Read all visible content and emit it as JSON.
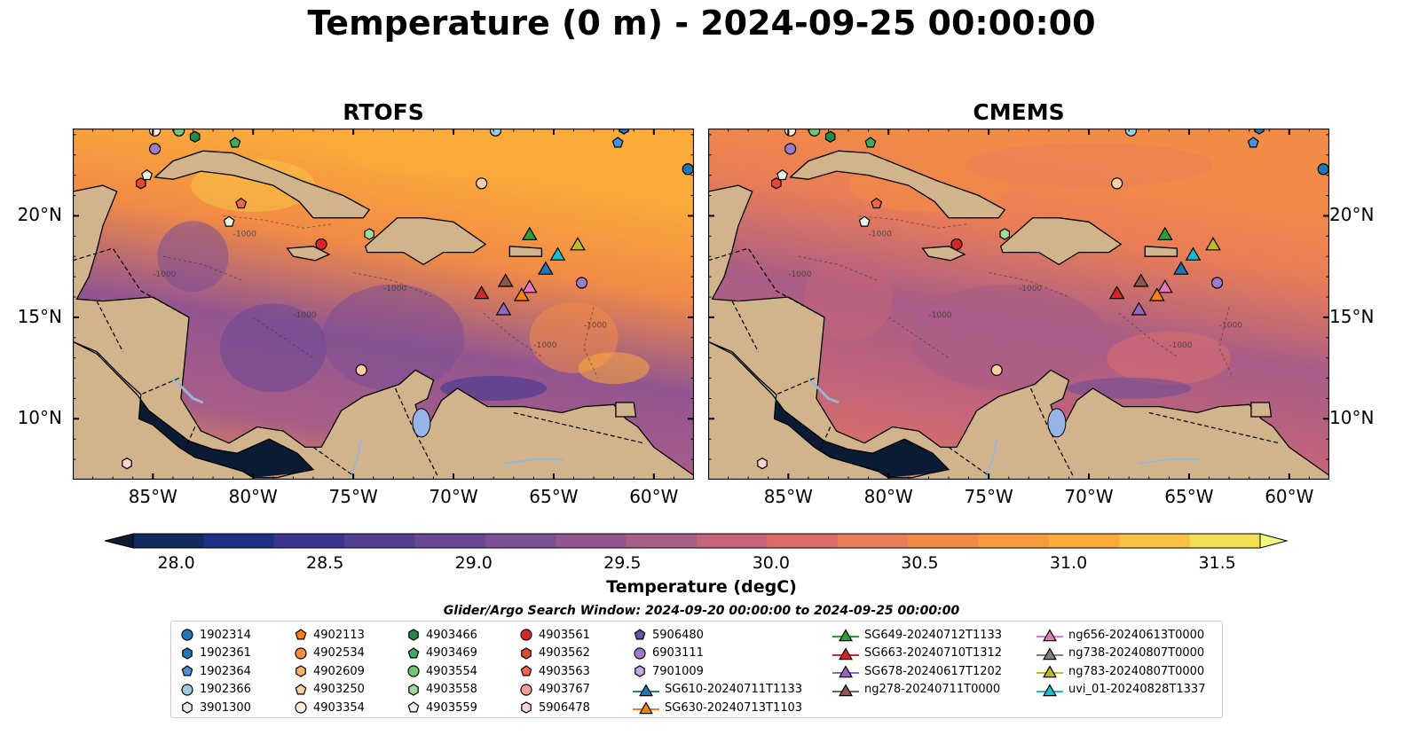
{
  "title": "Temperature (0 m) - 2024-09-25 00:00:00",
  "panels": [
    {
      "title": "RTOFS"
    },
    {
      "title": "CMEMS"
    }
  ],
  "map": {
    "lon_range": [
      -89,
      -58
    ],
    "lat_range": [
      7,
      24.3
    ],
    "lon_ticks": [
      -85,
      -80,
      -75,
      -70,
      -65,
      -60
    ],
    "lon_tick_labels": [
      "85°W",
      "80°W",
      "75°W",
      "70°W",
      "65°W",
      "60°W"
    ],
    "lat_ticks": [
      10,
      15,
      20
    ],
    "lat_tick_labels": [
      "10°N",
      "15°N",
      "20°N"
    ],
    "land_color": "#d2b48c",
    "lake_color": "#96b4e6",
    "isobath_label": "-1000"
  },
  "colorbar": {
    "min": 28.0,
    "max": 31.5,
    "ticks": [
      28.0,
      28.5,
      29.0,
      29.5,
      30.0,
      30.5,
      31.0,
      31.5
    ],
    "tick_labels": [
      "28.0",
      "28.5",
      "29.0",
      "29.5",
      "30.0",
      "30.5",
      "31.0",
      "31.5"
    ],
    "colors": [
      "#0a1b33",
      "#112a5e",
      "#1f2e86",
      "#3b3591",
      "#553f93",
      "#6a4895",
      "#7d4f94",
      "#935690",
      "#a85d87",
      "#c3647a",
      "#da6d69",
      "#ea7d57",
      "#f28b46",
      "#f89a3e",
      "#fbab3a",
      "#f8c245",
      "#f3df52",
      "#eeff80"
    ],
    "label": "Temperature (degC)"
  },
  "search_window": "Glider/Argo Search Window: 2024-09-20 00:00:00 to 2024-09-25 00:00:00",
  "legend": [
    [
      {
        "label": "1902314",
        "marker": "circle",
        "color": "#1f77b4"
      },
      {
        "label": "1902361",
        "marker": "hexagon",
        "color": "#1f77b4"
      },
      {
        "label": "1902364",
        "marker": "pentagon",
        "color": "#4a90d9"
      },
      {
        "label": "1902366",
        "marker": "circle",
        "color": "#9ecae1"
      },
      {
        "label": "3901300",
        "marker": "hexagon",
        "color": "#deebf7"
      }
    ],
    [
      {
        "label": "4902113",
        "marker": "pentagon",
        "color": "#ff7f0e"
      },
      {
        "label": "4902534",
        "marker": "circle",
        "color": "#fd8d3c"
      },
      {
        "label": "4902609",
        "marker": "hexagon",
        "color": "#fdae6b"
      },
      {
        "label": "4903250",
        "marker": "pentagon",
        "color": "#fdd0a2"
      },
      {
        "label": "4903354",
        "marker": "circle",
        "color": "#feedde"
      }
    ],
    [
      {
        "label": "4903466",
        "marker": "hexagon",
        "color": "#238b45"
      },
      {
        "label": "4903469",
        "marker": "pentagon",
        "color": "#41ab5d"
      },
      {
        "label": "4903554",
        "marker": "circle",
        "color": "#74c476"
      },
      {
        "label": "4903558",
        "marker": "hexagon",
        "color": "#a1d99b"
      },
      {
        "label": "4903559",
        "marker": "pentagon",
        "color": "#e5f5e0"
      }
    ],
    [
      {
        "label": "4903561",
        "marker": "circle",
        "color": "#d62728"
      },
      {
        "label": "4903562",
        "marker": "hexagon",
        "color": "#e34a33"
      },
      {
        "label": "4903563",
        "marker": "pentagon",
        "color": "#ef6548"
      },
      {
        "label": "4903767",
        "marker": "circle",
        "color": "#f4a09a"
      },
      {
        "label": "5906478",
        "marker": "hexagon",
        "color": "#fcd5d0"
      }
    ],
    [
      {
        "label": "5906480",
        "marker": "pentagon",
        "color": "#6a51a3"
      },
      {
        "label": "6903111",
        "marker": "circle",
        "color": "#9e7bc9"
      },
      {
        "label": "7901009",
        "marker": "hexagon",
        "color": "#c5a8e0"
      },
      {
        "label": "SG610-20240711T1133",
        "marker": "triangle-line",
        "color": "#1f77b4"
      },
      {
        "label": "SG630-20240713T1103",
        "marker": "triangle-line",
        "color": "#ff7f0e"
      }
    ],
    [
      {
        "label": "SG649-20240712T1133",
        "marker": "triangle-line",
        "color": "#2ca02c"
      },
      {
        "label": "SG663-20240710T1312",
        "marker": "triangle-line",
        "color": "#d62728"
      },
      {
        "label": "SG678-20240617T1202",
        "marker": "triangle-line",
        "color": "#9467bd"
      },
      {
        "label": "ng278-20240711T0000",
        "marker": "triangle-line",
        "color": "#8c564b"
      }
    ],
    [
      {
        "label": "ng656-20240613T0000",
        "marker": "triangle-line",
        "color": "#e377c2"
      },
      {
        "label": "ng738-20240807T0000",
        "marker": "triangle-line",
        "color": "#7f7f7f"
      },
      {
        "label": "ng783-20240807T0000",
        "marker": "triangle-line",
        "color": "#bcbd22"
      },
      {
        "label": "uvi_01-20240828T1337",
        "marker": "triangle-line",
        "color": "#17becf"
      }
    ]
  ],
  "map_markers": [
    {
      "lon": -58.3,
      "lat": 22.3,
      "marker": "circle",
      "color": "#1f77b4"
    },
    {
      "lon": -61.5,
      "lat": 24.3,
      "marker": "hexagon",
      "color": "#1f77b4"
    },
    {
      "lon": -61.8,
      "lat": 23.6,
      "marker": "pentagon",
      "color": "#4a90d9"
    },
    {
      "lon": -67.9,
      "lat": 24.2,
      "marker": "circle",
      "color": "#9ecae1"
    },
    {
      "lon": -84.9,
      "lat": 23.3,
      "marker": "circle",
      "color": "#9e7bc9"
    },
    {
      "lon": -83.7,
      "lat": 24.2,
      "marker": "circle",
      "color": "#74c476"
    },
    {
      "lon": -82.9,
      "lat": 23.9,
      "marker": "hexagon",
      "color": "#238b45"
    },
    {
      "lon": -80.9,
      "lat": 23.6,
      "marker": "pentagon",
      "color": "#41ab5d"
    },
    {
      "lon": -84.9,
      "lat": 24.2,
      "marker": "circle",
      "color": "#feedde"
    },
    {
      "lon": -85.3,
      "lat": 22.0,
      "marker": "pentagon",
      "color": "#e5f5e0"
    },
    {
      "lon": -85.6,
      "lat": 21.6,
      "marker": "hexagon",
      "color": "#e34a33"
    },
    {
      "lon": -80.6,
      "lat": 20.6,
      "marker": "pentagon",
      "color": "#ef6548"
    },
    {
      "lon": -68.6,
      "lat": 21.6,
      "marker": "circle",
      "color": "#fdd0a2"
    },
    {
      "lon": -81.2,
      "lat": 19.7,
      "marker": "pentagon",
      "color": "#e5f5e0"
    },
    {
      "lon": -76.6,
      "lat": 18.6,
      "marker": "circle",
      "color": "#d62728"
    },
    {
      "lon": -74.2,
      "lat": 19.1,
      "marker": "hexagon",
      "color": "#a1d99b"
    },
    {
      "lon": -63.6,
      "lat": 16.7,
      "marker": "circle",
      "color": "#9e7bc9"
    },
    {
      "lon": -74.6,
      "lat": 12.4,
      "marker": "circle",
      "color": "#fdd0a2"
    },
    {
      "lon": -86.3,
      "lat": 7.8,
      "marker": "hexagon",
      "color": "#fcd5d0"
    }
  ],
  "gliders": [
    {
      "lon": -66.2,
      "lat": 19.1,
      "color": "#2ca02c"
    },
    {
      "lon": -63.8,
      "lat": 18.6,
      "color": "#bcbd22"
    },
    {
      "lon": -64.8,
      "lat": 18.1,
      "color": "#17becf"
    },
    {
      "lon": -65.4,
      "lat": 17.4,
      "color": "#1f77b4"
    },
    {
      "lon": -68.6,
      "lat": 16.2,
      "color": "#d62728"
    },
    {
      "lon": -67.4,
      "lat": 16.8,
      "color": "#8c564b"
    },
    {
      "lon": -66.2,
      "lat": 16.5,
      "color": "#e377c2"
    },
    {
      "lon": -66.6,
      "lat": 16.1,
      "color": "#ff7f0e"
    },
    {
      "lon": -67.5,
      "lat": 15.4,
      "color": "#9467bd"
    }
  ]
}
